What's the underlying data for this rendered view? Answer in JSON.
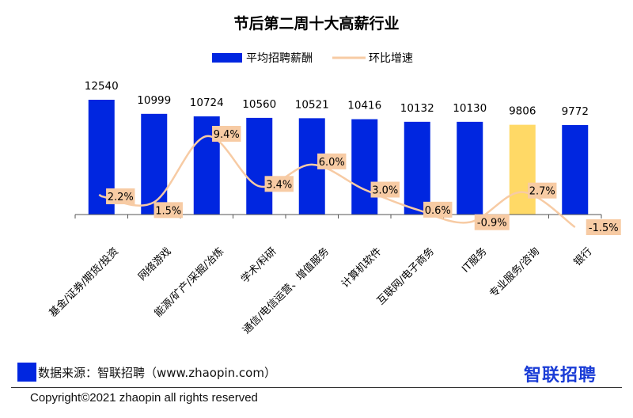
{
  "chart_data": {
    "type": "bar",
    "title": "节后第二周十大高薪行业",
    "categories": [
      "基金/证券/期货/投资",
      "网络游戏",
      "能源/矿产/采掘/冶炼",
      "学术/科研",
      "通信/电信运营、增值服务",
      "计算机软件",
      "互联网/电子商务",
      "IT服务",
      "专业服务/咨询",
      "银行"
    ],
    "series": [
      {
        "name": "平均招聘薪酬",
        "type": "bar",
        "values": [
          12540,
          10999,
          10724,
          10560,
          10521,
          10416,
          10132,
          10130,
          9806,
          9772
        ]
      },
      {
        "name": "环比增速",
        "type": "line",
        "values": [
          2.2,
          1.5,
          9.4,
          3.4,
          6.0,
          3.0,
          0.6,
          -0.9,
          2.7,
          -1.5
        ]
      }
    ],
    "value_labels": [
      "12540",
      "10999",
      "10724",
      "10560",
      "10521",
      "10416",
      "10132",
      "10130",
      "9806",
      "9772"
    ],
    "pct_labels": [
      "2.2%",
      "1.5%",
      "9.4%",
      "3.4%",
      "6.0%",
      "3.0%",
      "0.6%",
      "-0.9%",
      "2.7%",
      "-1.5%"
    ],
    "highlight_index": 8,
    "ylim": [
      0,
      12540
    ],
    "line_ylim": [
      -1.5,
      9.4
    ],
    "legend_position": "top-center",
    "grid": false
  },
  "colors": {
    "bar": "#0026e0",
    "highlight_bar": "#ffd966",
    "line": "#f7cba4",
    "label_bg": "#f7cba4",
    "brand": "#1a3cd6"
  },
  "footer": {
    "source": "数据来源：智联招聘（www.zhaopin.com）",
    "brand": "智联招聘",
    "copyright": "Copyright©2021 zhaopin all rights reserved"
  }
}
